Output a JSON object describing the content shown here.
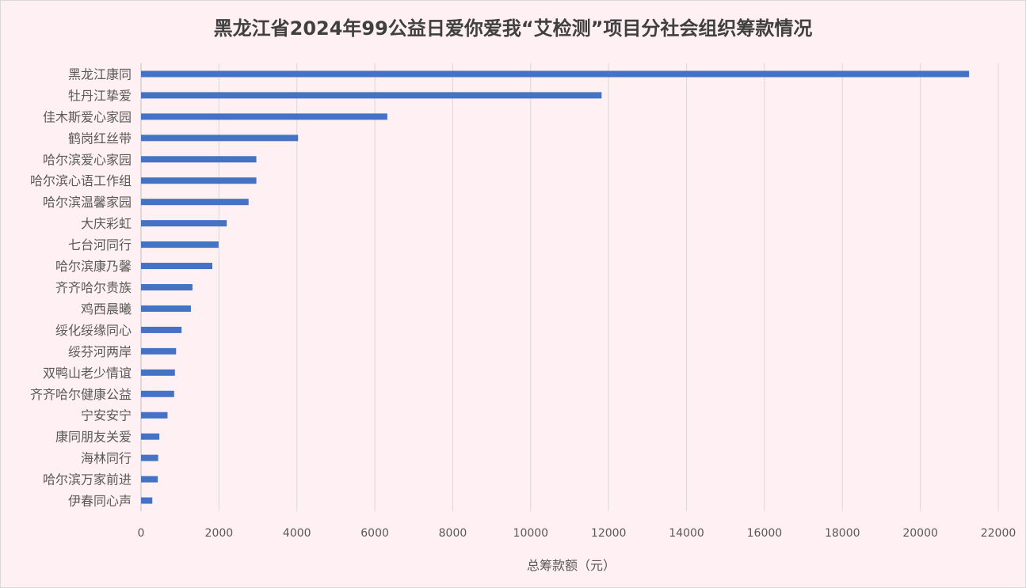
{
  "chart_data": {
    "type": "bar",
    "orientation": "horizontal",
    "title": "黑龙江省2024年99公益日爱你爱我“艾检测”项目分社会组织筹款情况",
    "xlabel": "总筹款额（元）",
    "ylabel": "",
    "xlim": [
      0,
      22000
    ],
    "xticks": [
      0,
      2000,
      4000,
      6000,
      8000,
      10000,
      12000,
      14000,
      16000,
      18000,
      20000,
      22000
    ],
    "grid": "vertical",
    "bar_color": "#4472c4",
    "categories": [
      "黑龙江康同",
      "牡丹江挚爱",
      "佳木斯爱心家园",
      "鹤岗红丝带",
      "哈尔滨爱心家园",
      "哈尔滨心语工作组",
      "哈尔滨温馨家园",
      "大庆彩虹",
      "七台河同行",
      "哈尔滨康乃馨",
      "齐齐哈尔贵族",
      "鸡西晨曦",
      "绥化绥缘同心",
      "绥芬河两岸",
      "双鸭山老少情谊",
      "齐齐哈尔健康公益",
      "宁安安宁",
      "康同朋友关爱",
      "海林同行",
      "哈尔滨万家前进",
      "伊春同心声"
    ],
    "values": [
      21250,
      11820,
      6320,
      4030,
      2960,
      2960,
      2760,
      2200,
      1990,
      1830,
      1320,
      1280,
      1040,
      900,
      870,
      850,
      680,
      470,
      440,
      430,
      290
    ]
  }
}
